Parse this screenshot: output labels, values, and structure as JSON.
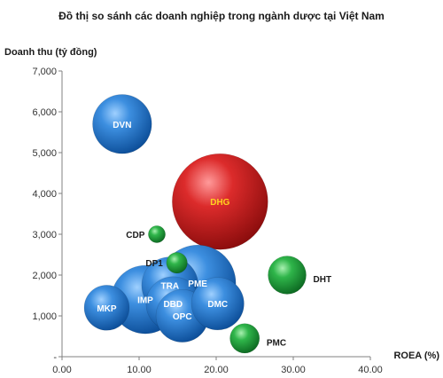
{
  "chart_data": {
    "type": "bubble",
    "title": "Đồ thị so sánh các doanh nghiệp trong ngành dược tại Việt Nam",
    "xlabel": "ROEA (%)",
    "ylabel": "Doanh thu (tỷ đồng)",
    "xlim": [
      0,
      40
    ],
    "ylim": [
      0,
      7000
    ],
    "x_ticks": [
      "0.00",
      "10.00",
      "20.00",
      "30.00",
      "40.00"
    ],
    "y_ticks": [
      "-",
      "1,000",
      "2,000",
      "3,000",
      "4,000",
      "5,000",
      "6,000",
      "7,000"
    ],
    "grid": false,
    "legend": "none",
    "colors": {
      "blue": "#1f6fc5",
      "red": "#c81e1e",
      "green": "#1f9a3a",
      "label_dhg": "#ffd21f"
    },
    "points": [
      {
        "name": "DVN",
        "x": 7.8,
        "y": 5700,
        "size": 2.4,
        "color": "blue",
        "label_position": "center"
      },
      {
        "name": "DHG",
        "x": 20.5,
        "y": 3800,
        "size": 6.3,
        "color": "red",
        "label_position": "center"
      },
      {
        "name": "CDP",
        "x": 12.3,
        "y": 3000,
        "size": 0.2,
        "color": "green",
        "label_position": "left"
      },
      {
        "name": "DP1",
        "x": 14.9,
        "y": 2300,
        "size": 0.3,
        "color": "green",
        "label_position": "left"
      },
      {
        "name": "DHT",
        "x": 29.2,
        "y": 2000,
        "size": 1.0,
        "color": "green",
        "label_position": "right"
      },
      {
        "name": "PMC",
        "x": 23.7,
        "y": 450,
        "size": 0.6,
        "color": "green",
        "label_position": "right"
      },
      {
        "name": "MKP",
        "x": 5.8,
        "y": 1200,
        "size": 1.4,
        "color": "blue",
        "label_position": "center"
      },
      {
        "name": "IMP",
        "x": 10.8,
        "y": 1400,
        "size": 3.2,
        "color": "blue",
        "label_position": "center"
      },
      {
        "name": "TRA",
        "x": 14.0,
        "y": 1750,
        "size": 2.2,
        "color": "blue",
        "label_position": "center"
      },
      {
        "name": "DBD",
        "x": 14.4,
        "y": 1300,
        "size": 2.0,
        "color": "blue",
        "label_position": "center"
      },
      {
        "name": "OPC",
        "x": 15.6,
        "y": 1000,
        "size": 1.9,
        "color": "blue",
        "label_position": "center"
      },
      {
        "name": "DMC",
        "x": 20.2,
        "y": 1300,
        "size": 1.9,
        "color": "blue",
        "label_position": "center"
      },
      {
        "name": "PME",
        "x": 17.6,
        "y": 1800,
        "size": 4.0,
        "color": "blue",
        "label_position": "center"
      }
    ]
  }
}
